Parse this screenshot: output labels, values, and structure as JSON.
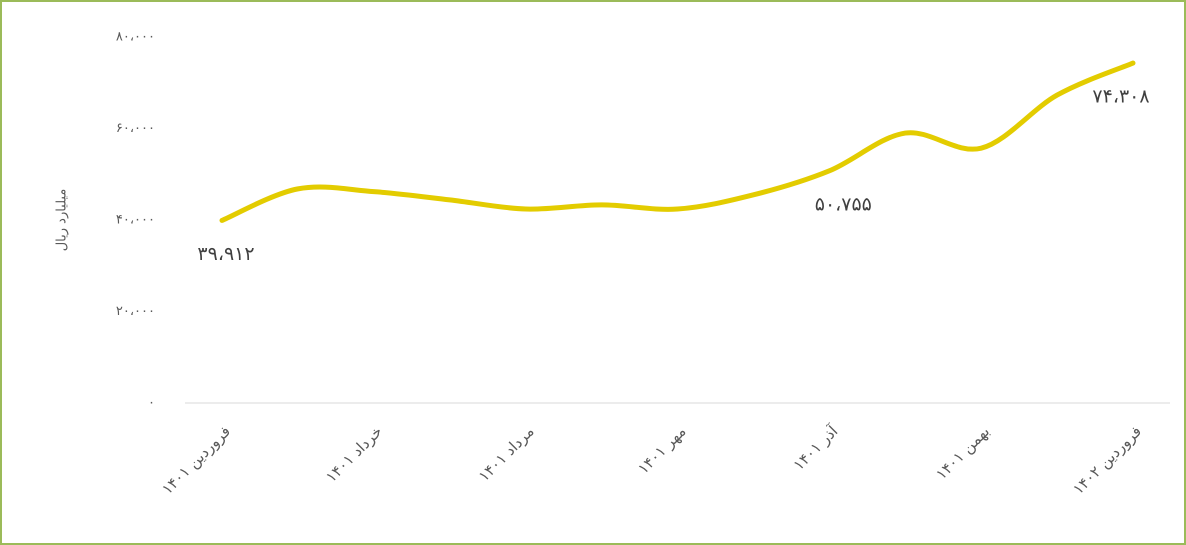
{
  "chart_data": {
    "type": "line",
    "y_label": "میلیارد ریال",
    "categories": [
      "فروردین ۱۴۰۱",
      null,
      "خرداد ۱۴۰۱",
      null,
      "مرداد ۱۴۰۱",
      null,
      "مهر ۱۴۰۱",
      null,
      "آذر ۱۴۰۱",
      null,
      "بهمن ۱۴۰۱",
      null,
      "فروردین ۱۴۰۲"
    ],
    "series": [
      {
        "name": "میلیارد ریال",
        "color": "#e3cc00",
        "values": [
          39912,
          46800,
          46200,
          44400,
          42400,
          43300,
          42400,
          45500,
          50755,
          59000,
          55700,
          67300,
          74308
        ],
        "value_labels": [
          "۳۹،۹۱۲",
          null,
          null,
          null,
          null,
          null,
          null,
          null,
          "۵۰،۷۵۵",
          null,
          null,
          null,
          "۷۴،۳۰۸"
        ]
      }
    ],
    "ylim": [
      0,
      80000
    ],
    "yticks": [
      {
        "value": 0,
        "label": "۰"
      },
      {
        "value": 20000,
        "label": "۲۰،۰۰۰"
      },
      {
        "value": 40000,
        "label": "۴۰،۰۰۰"
      },
      {
        "value": 60000,
        "label": "۶۰،۰۰۰"
      },
      {
        "value": 80000,
        "label": "۸۰،۰۰۰"
      }
    ],
    "grid": false
  }
}
